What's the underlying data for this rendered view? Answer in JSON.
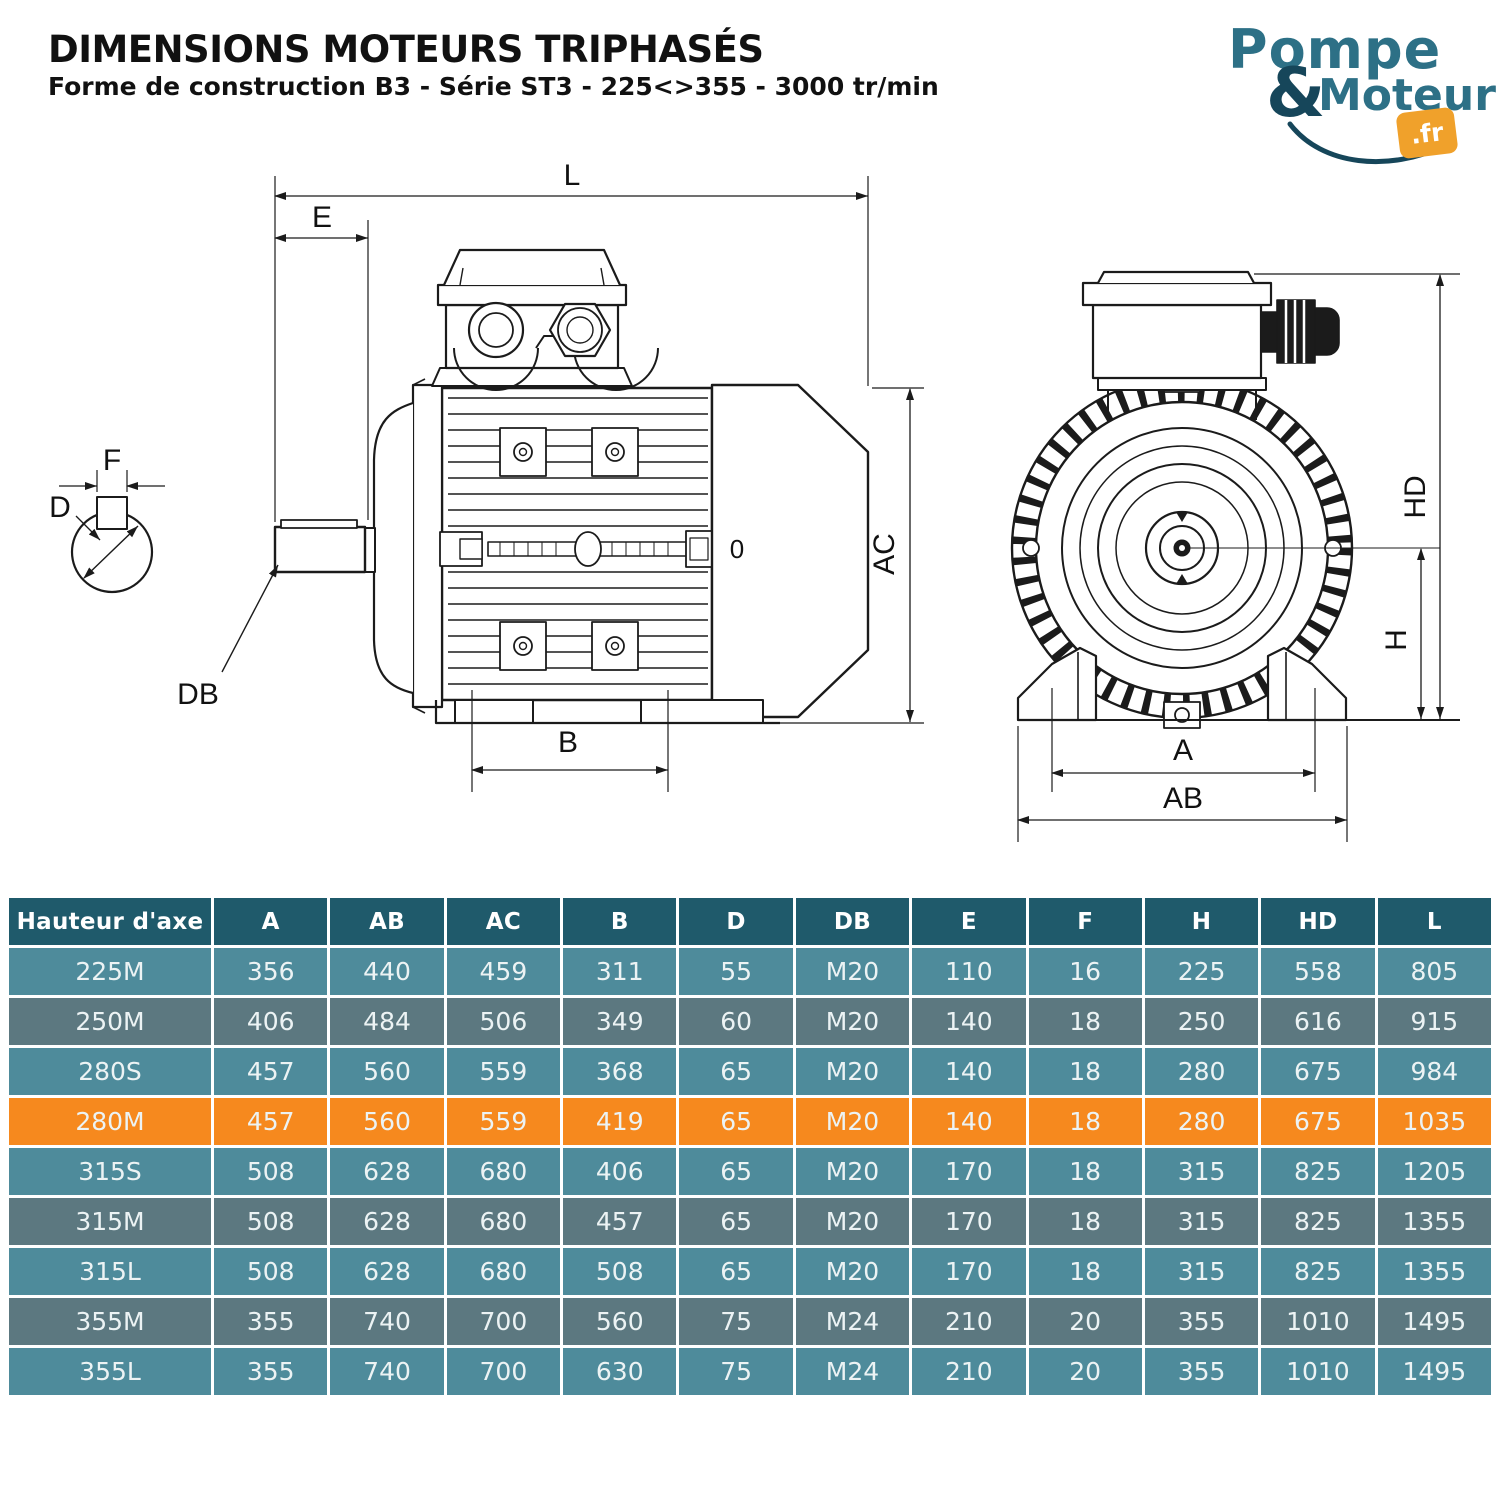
{
  "page": {
    "title": "DIMENSIONS MOTEURS TRIPHASÉS",
    "subtitle": "Forme de construction B3 - Série ST3 - 225<>355 - 3000 tr/min"
  },
  "logo": {
    "word1": "Pompe",
    "amp": "&",
    "word2": "Moteur",
    "badge": ".fr",
    "teal": "#2D7086",
    "dark": "#16465A",
    "orange": "#F0A12B"
  },
  "diagram": {
    "labels": {
      "l": "L",
      "e": "E",
      "f": "F",
      "d": "D",
      "db": "DB",
      "b": "B",
      "ac": "AC",
      "zero": "0",
      "hd": "HD",
      "h": "H",
      "a": "A",
      "ab": "AB"
    }
  },
  "table": {
    "header": [
      "Hauteur d'axe",
      "A",
      "AB",
      "AC",
      "B",
      "D",
      "DB",
      "E",
      "F",
      "H",
      "HD",
      "L"
    ],
    "colors": {
      "header_bg": "#1F5A6B",
      "row_light": "#4E8B9B",
      "row_dark": "#5C7880",
      "highlight": "#F6891E",
      "text": "#ECF3F4"
    },
    "rows": [
      {
        "model": "225M",
        "shade": "light",
        "highlight": false,
        "values": [
          "356",
          "440",
          "459",
          "311",
          "55",
          "M20",
          "110",
          "16",
          "225",
          "558",
          "805"
        ]
      },
      {
        "model": "250M",
        "shade": "dark",
        "highlight": false,
        "values": [
          "406",
          "484",
          "506",
          "349",
          "60",
          "M20",
          "140",
          "18",
          "250",
          "616",
          "915"
        ]
      },
      {
        "model": "280S",
        "shade": "light",
        "highlight": false,
        "values": [
          "457",
          "560",
          "559",
          "368",
          "65",
          "M20",
          "140",
          "18",
          "280",
          "675",
          "984"
        ]
      },
      {
        "model": "280M",
        "shade": "dark",
        "highlight": true,
        "values": [
          "457",
          "560",
          "559",
          "419",
          "65",
          "M20",
          "140",
          "18",
          "280",
          "675",
          "1035"
        ]
      },
      {
        "model": "315S",
        "shade": "light",
        "highlight": false,
        "values": [
          "508",
          "628",
          "680",
          "406",
          "65",
          "M20",
          "170",
          "18",
          "315",
          "825",
          "1205"
        ]
      },
      {
        "model": "315M",
        "shade": "dark",
        "highlight": false,
        "values": [
          "508",
          "628",
          "680",
          "457",
          "65",
          "M20",
          "170",
          "18",
          "315",
          "825",
          "1355"
        ]
      },
      {
        "model": "315L",
        "shade": "light",
        "highlight": false,
        "values": [
          "508",
          "628",
          "680",
          "508",
          "65",
          "M20",
          "170",
          "18",
          "315",
          "825",
          "1355"
        ]
      },
      {
        "model": "355M",
        "shade": "dark",
        "highlight": false,
        "values": [
          "355",
          "740",
          "700",
          "560",
          "75",
          "M24",
          "210",
          "20",
          "355",
          "1010",
          "1495"
        ]
      },
      {
        "model": "355L",
        "shade": "light",
        "highlight": false,
        "values": [
          "355",
          "740",
          "700",
          "630",
          "75",
          "M24",
          "210",
          "20",
          "355",
          "1010",
          "1495"
        ]
      }
    ]
  }
}
